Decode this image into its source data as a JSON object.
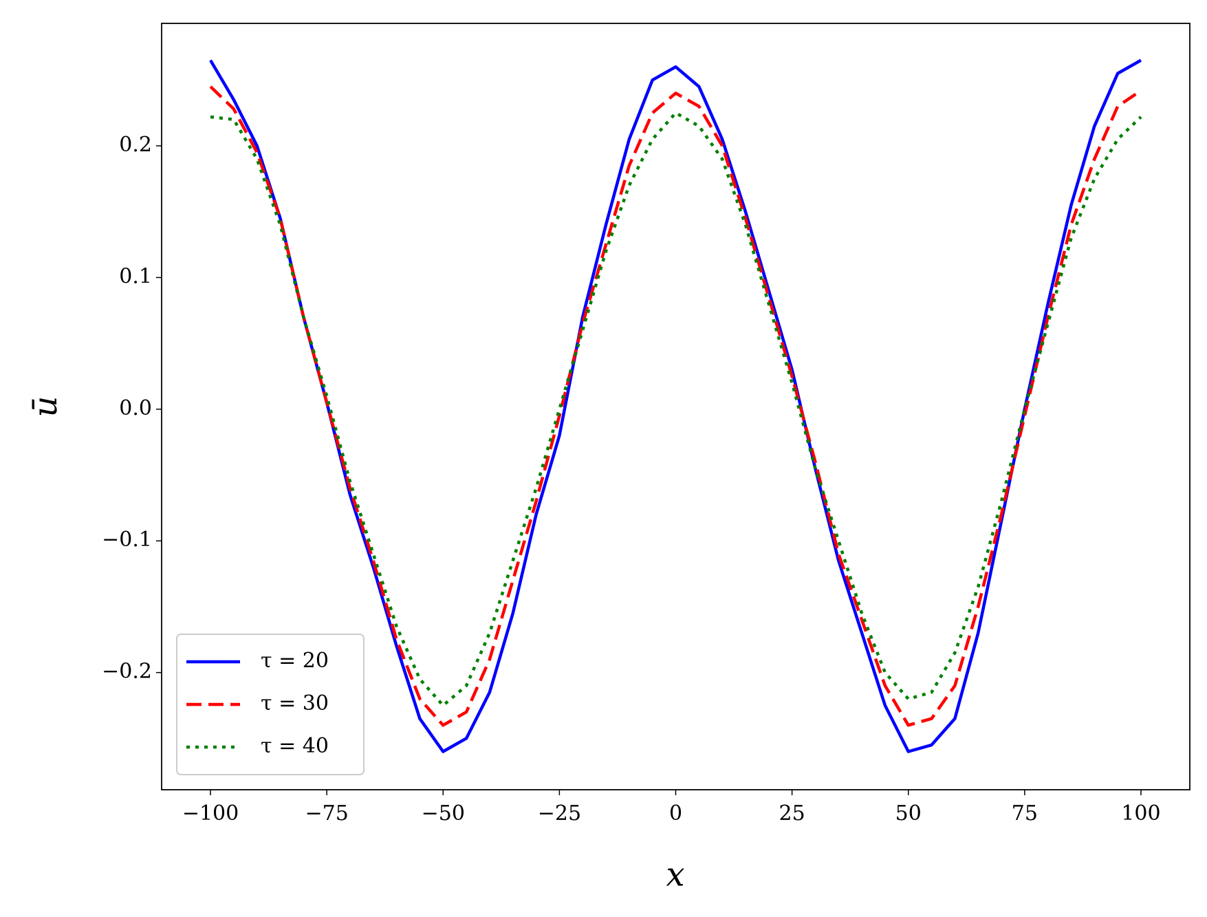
{
  "chart_data": {
    "type": "line",
    "xlabel": "x",
    "ylabel": "ū",
    "x": [
      -100,
      -95,
      -90,
      -85,
      -80,
      -75,
      -70,
      -65,
      -60,
      -55,
      -50,
      -45,
      -40,
      -35,
      -30,
      -25,
      -20,
      -15,
      -10,
      -5,
      0,
      5,
      10,
      15,
      20,
      25,
      30,
      35,
      40,
      45,
      50,
      55,
      60,
      65,
      70,
      75,
      80,
      85,
      90,
      95,
      100
    ],
    "series": [
      {
        "name": "τ = 20",
        "color": "#0000ff",
        "linestyle": "solid",
        "values": [
          0.265,
          0.235,
          0.2,
          0.145,
          0.07,
          0.005,
          -0.065,
          -0.12,
          -0.18,
          -0.235,
          -0.26,
          -0.25,
          -0.215,
          -0.155,
          -0.08,
          -0.02,
          0.07,
          0.14,
          0.205,
          0.25,
          0.26,
          0.245,
          0.205,
          0.15,
          0.09,
          0.03,
          -0.045,
          -0.115,
          -0.17,
          -0.225,
          -0.26,
          -0.255,
          -0.235,
          -0.17,
          -0.085,
          0.0,
          0.08,
          0.155,
          0.215,
          0.255,
          0.265
        ]
      },
      {
        "name": "τ = 30",
        "color": "#ff0000",
        "linestyle": "dashed",
        "values": [
          0.245,
          0.228,
          0.195,
          0.145,
          0.07,
          0.005,
          -0.06,
          -0.115,
          -0.175,
          -0.22,
          -0.24,
          -0.23,
          -0.19,
          -0.13,
          -0.07,
          -0.005,
          0.065,
          0.125,
          0.185,
          0.225,
          0.24,
          0.23,
          0.2,
          0.145,
          0.085,
          0.025,
          -0.04,
          -0.11,
          -0.16,
          -0.21,
          -0.24,
          -0.235,
          -0.21,
          -0.15,
          -0.08,
          -0.005,
          0.07,
          0.14,
          0.19,
          0.23,
          0.242
        ]
      },
      {
        "name": "τ = 40",
        "color": "#008000",
        "linestyle": "dotted",
        "values": [
          0.222,
          0.22,
          0.19,
          0.14,
          0.07,
          0.01,
          -0.055,
          -0.11,
          -0.165,
          -0.205,
          -0.225,
          -0.21,
          -0.17,
          -0.115,
          -0.06,
          0.0,
          0.06,
          0.12,
          0.17,
          0.205,
          0.225,
          0.215,
          0.19,
          0.14,
          0.08,
          0.02,
          -0.045,
          -0.1,
          -0.155,
          -0.2,
          -0.22,
          -0.215,
          -0.185,
          -0.135,
          -0.07,
          0.0,
          0.065,
          0.13,
          0.175,
          0.205,
          0.222
        ]
      }
    ],
    "xlim": [
      -110.5,
      110.5
    ],
    "ylim": [
      -0.289,
      0.293
    ],
    "xticks": [
      {
        "value": -100,
        "label": "−100"
      },
      {
        "value": -75,
        "label": "−75"
      },
      {
        "value": -50,
        "label": "−50"
      },
      {
        "value": -25,
        "label": "−25"
      },
      0,
      25,
      50,
      75,
      100
    ],
    "yticks": [
      {
        "value": -0.2,
        "label": "−0.2"
      },
      {
        "value": -0.1,
        "label": "−0.1"
      },
      {
        "value": 0,
        "label": "0.0"
      },
      0.1,
      0.2
    ],
    "grid": false,
    "legend": "lower left"
  }
}
